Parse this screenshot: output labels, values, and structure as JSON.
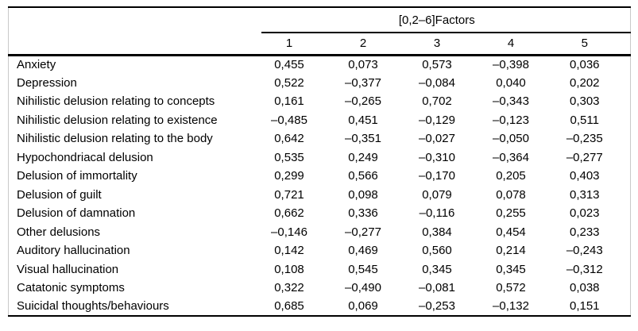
{
  "table": {
    "group_header": "[0,2–6]Factors",
    "factor_columns": [
      "1",
      "2",
      "3",
      "4",
      "5"
    ],
    "rows": [
      {
        "label": "Anxiety",
        "values": [
          "0,455",
          "0,073",
          "0,573",
          "–0,398",
          "0,036"
        ]
      },
      {
        "label": "Depression",
        "values": [
          "0,522",
          "–0,377",
          "–0,084",
          "0,040",
          "0,202"
        ]
      },
      {
        "label": "Nihilistic delusion relating to concepts",
        "values": [
          "0,161",
          "–0,265",
          "0,702",
          "–0,343",
          "0,303"
        ]
      },
      {
        "label": "Nihilistic delusion relating to existence",
        "values": [
          "–0,485",
          "0,451",
          "–0,129",
          "–0,123",
          "0,511"
        ]
      },
      {
        "label": "Nihilistic delusion relating to the body",
        "values": [
          "0,642",
          "–0,351",
          "–0,027",
          "–0,050",
          "–0,235"
        ]
      },
      {
        "label": "Hypochondriacal delusion",
        "values": [
          "0,535",
          "0,249",
          "–0,310",
          "–0,364",
          "–0,277"
        ]
      },
      {
        "label": "Delusion of immortality",
        "values": [
          "0,299",
          "0,566",
          "–0,170",
          "0,205",
          "0,403"
        ]
      },
      {
        "label": "Delusion of guilt",
        "values": [
          "0,721",
          "0,098",
          "0,079",
          "0,078",
          "0,313"
        ]
      },
      {
        "label": "Delusion of damnation",
        "values": [
          "0,662",
          "0,336",
          "–0,116",
          "0,255",
          "0,023"
        ]
      },
      {
        "label": "Other delusions",
        "values": [
          "–0,146",
          "–0,277",
          "0,384",
          "0,454",
          "0,233"
        ]
      },
      {
        "label": "Auditory hallucination",
        "values": [
          "0,142",
          "0,469",
          "0,560",
          "0,214",
          "–0,243"
        ]
      },
      {
        "label": "Visual hallucination",
        "values": [
          "0,108",
          "0,545",
          "0,345",
          "0,345",
          "–0,312"
        ]
      },
      {
        "label": "Catatonic symptoms",
        "values": [
          "0,322",
          "–0,490",
          "–0,081",
          "0,572",
          "0,038"
        ]
      },
      {
        "label": "Suicidal thoughts/behaviours",
        "values": [
          "0,685",
          "0,069",
          "–0,253",
          "–0,132",
          "0,151"
        ]
      }
    ]
  },
  "colors": {
    "background": "#ffffff",
    "text": "#000000",
    "rule": "#000000",
    "side_border": "#c9c9c9"
  }
}
